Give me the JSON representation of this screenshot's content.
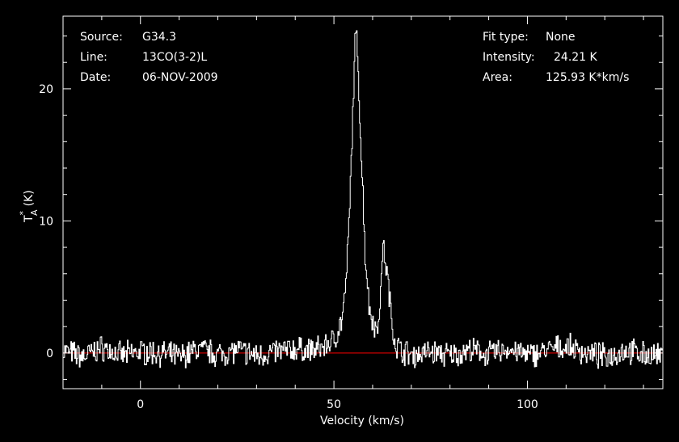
{
  "info_left": {
    "source_label": "Source:",
    "source_value": "G34.3",
    "line_label": "Line:",
    "line_value": "13CO(3-2)L",
    "date_label": "Date:",
    "date_value": "06-NOV-2009"
  },
  "info_right": {
    "fit_label": "Fit type:",
    "fit_value": "None",
    "intensity_label": "Intensity:",
    "intensity_value": "24.21 K",
    "area_label": "Area:",
    "area_value": "125.93 K*km/s"
  },
  "chart_data": {
    "type": "line",
    "xlabel": "Velocity (km/s)",
    "ylabel": "T*A (K)",
    "ylabel_main": "T",
    "ylabel_sup": "*",
    "ylabel_sub": "A",
    "ylabel_unit": "(K)",
    "xlim": [
      -20,
      135
    ],
    "ylim": [
      -2.7,
      25.5
    ],
    "x_ticks": [
      0,
      50,
      100
    ],
    "y_ticks": [
      0,
      10,
      20
    ],
    "baseline": 0,
    "colors": {
      "spectrum": "#ffffff",
      "baseline": "#cc0000",
      "axes": "#ffffff",
      "background": "#000000"
    },
    "series": [
      {
        "x": [
          -20,
          -15,
          -10,
          -5,
          0,
          5,
          10,
          15,
          20,
          25,
          30,
          35,
          40,
          45,
          48,
          50,
          52,
          53,
          54,
          55,
          55.5,
          56,
          57,
          58,
          59,
          60,
          61,
          62,
          62.5,
          63,
          64,
          65,
          66,
          67,
          70,
          75,
          80,
          85,
          90,
          95,
          100,
          105,
          110,
          115,
          120,
          125,
          130,
          135
        ],
        "values": [
          0.2,
          -0.3,
          0.4,
          -0.2,
          0.1,
          0.0,
          -0.3,
          0.3,
          -0.1,
          0.2,
          -0.2,
          0.1,
          0.3,
          0.2,
          0.6,
          1.0,
          2.5,
          5.0,
          11.0,
          20.0,
          24.21,
          23.0,
          15.0,
          7.5,
          3.5,
          2.5,
          1.5,
          4.5,
          8.0,
          7.5,
          5.0,
          2.0,
          0.6,
          0.3,
          -0.2,
          0.1,
          -0.2,
          0.2,
          -0.1,
          0.3,
          -0.2,
          0.2,
          0.5,
          0.0,
          -0.3,
          0.2,
          -0.1,
          -0.3
        ]
      }
    ]
  }
}
